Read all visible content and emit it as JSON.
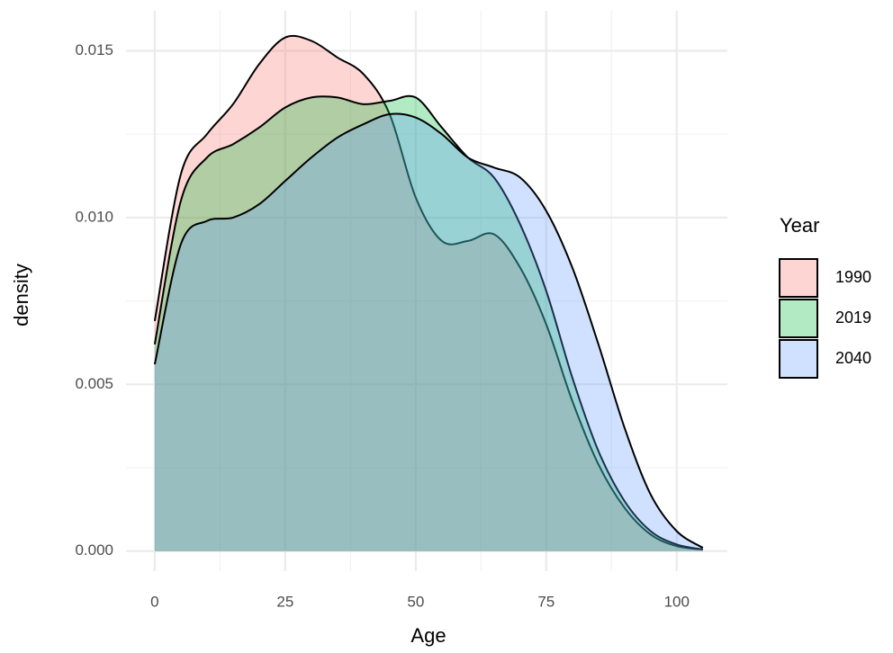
{
  "chart_data": {
    "type": "density",
    "x_label": "Age",
    "y_label": "density",
    "legend_title": "Year",
    "legend_position": "right",
    "grid": true,
    "x": [
      0,
      5,
      10,
      15,
      20,
      25,
      30,
      35,
      40,
      45,
      50,
      55,
      60,
      65,
      70,
      75,
      80,
      85,
      90,
      95,
      100,
      105
    ],
    "series": [
      {
        "name": "1990",
        "color": "#F8766D",
        "values": [
          0.0069,
          0.0113,
          0.0125,
          0.0134,
          0.0146,
          0.0154,
          0.0153,
          0.0148,
          0.0143,
          0.0131,
          0.0106,
          0.0093,
          0.0093,
          0.0095,
          0.0085,
          0.0068,
          0.0045,
          0.0026,
          0.0013,
          0.0005,
          0.00015,
          5e-05
        ]
      },
      {
        "name": "2019",
        "color": "#00BA38",
        "values": [
          0.0062,
          0.0105,
          0.0118,
          0.0122,
          0.0127,
          0.0133,
          0.0136,
          0.0136,
          0.0134,
          0.0135,
          0.0136,
          0.0127,
          0.0118,
          0.0112,
          0.0098,
          0.0078,
          0.0052,
          0.003,
          0.0015,
          0.0006,
          0.0002,
          5e-05
        ]
      },
      {
        "name": "2040",
        "color": "#619CFF",
        "values": [
          0.0056,
          0.0092,
          0.0099,
          0.01,
          0.0104,
          0.0111,
          0.0118,
          0.0124,
          0.0128,
          0.0131,
          0.013,
          0.0125,
          0.0118,
          0.0115,
          0.0112,
          0.0102,
          0.0085,
          0.0062,
          0.0037,
          0.0017,
          0.0006,
          0.0001
        ]
      }
    ],
    "xlim": [
      -5.5,
      109.7
    ],
    "xticks": [
      0,
      25,
      50,
      75,
      100
    ],
    "ylim": [
      -0.0006,
      0.0162
    ],
    "yticks": [
      {
        "value": 0,
        "label": "0.000"
      },
      {
        "value": 0.005,
        "label": "0.005"
      },
      {
        "value": 0.01,
        "label": "0.010"
      },
      {
        "value": 0.015,
        "label": "0.015"
      }
    ]
  }
}
